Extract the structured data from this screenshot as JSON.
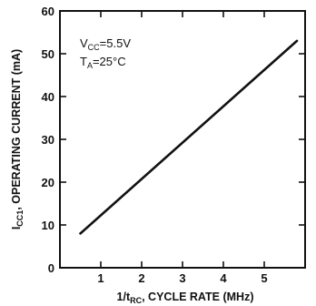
{
  "chart_data": {
    "type": "line",
    "xlabel": {
      "main": "1/t",
      "sub": "RC",
      "rest": ", CYCLE RATE (MHz)"
    },
    "ylabel": {
      "main": "I",
      "sub": "CC1",
      "rest": ", OPERATING CURRENT (mA)"
    },
    "xlim": [
      0,
      6
    ],
    "ylim": [
      0,
      60
    ],
    "x_ticks": [
      1,
      2,
      3,
      4,
      5
    ],
    "x_tick_labels": [
      "1",
      "2",
      "3",
      "4",
      "5"
    ],
    "y_ticks": [
      0,
      10,
      20,
      30,
      40,
      50,
      60
    ],
    "y_tick_labels": [
      "0",
      "10",
      "20",
      "30",
      "40",
      "50",
      "60"
    ],
    "grid": false,
    "annotations": [
      {
        "main": "V",
        "sub": "CC",
        "rest": "=5.5V"
      },
      {
        "main": "T",
        "sub": "A",
        "rest": "=25°C"
      }
    ],
    "series": [
      {
        "x": [
          0.5,
          5.8
        ],
        "y": [
          8,
          53
        ]
      }
    ],
    "line_color": "#111111"
  }
}
